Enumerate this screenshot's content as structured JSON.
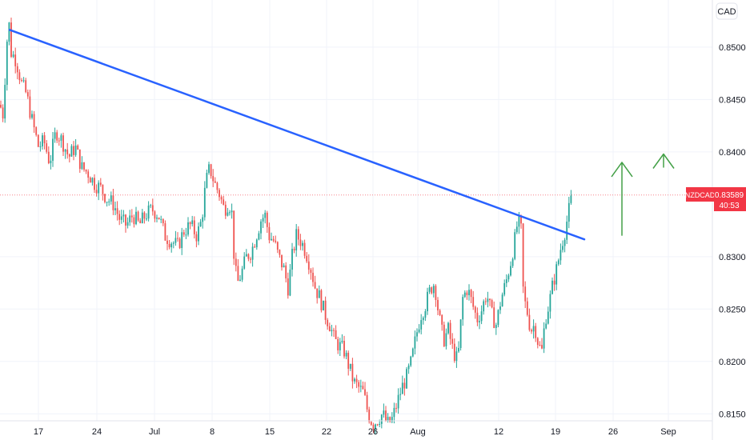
{
  "chart_data": {
    "type": "candlestick",
    "symbol": "NZDCAD",
    "currency_label": "CAD",
    "current_price": "0.83589",
    "countdown": "40:53",
    "y_ticks": [
      "0.85000",
      "0.84500",
      "0.84000",
      "0.83000",
      "0.82500",
      "0.82000",
      "0.81500"
    ],
    "y_tick_values": [
      0.85,
      0.845,
      0.84,
      0.83,
      0.825,
      0.82,
      0.815
    ],
    "x_ticks": [
      "17",
      "24",
      "Jul",
      "8",
      "15",
      "22",
      "26",
      "Aug",
      "12",
      "19",
      "26",
      "Sep"
    ],
    "ylim": [
      0.8125,
      0.8545
    ],
    "price_path": [
      [
        0,
        0.8445
      ],
      [
        4,
        0.8435
      ],
      [
        8,
        0.85
      ],
      [
        11,
        0.8525
      ],
      [
        14,
        0.8495
      ],
      [
        20,
        0.8488
      ],
      [
        27,
        0.8465
      ],
      [
        33,
        0.8455
      ],
      [
        40,
        0.843
      ],
      [
        48,
        0.8405
      ],
      [
        55,
        0.841
      ],
      [
        62,
        0.839
      ],
      [
        70,
        0.842
      ],
      [
        78,
        0.841
      ],
      [
        86,
        0.8395
      ],
      [
        94,
        0.8405
      ],
      [
        102,
        0.8385
      ],
      [
        110,
        0.838
      ],
      [
        118,
        0.837
      ],
      [
        126,
        0.8365
      ],
      [
        134,
        0.8355
      ],
      [
        142,
        0.835
      ],
      [
        150,
        0.8335
      ],
      [
        158,
        0.833
      ],
      [
        166,
        0.834
      ],
      [
        174,
        0.833
      ],
      [
        182,
        0.834
      ],
      [
        190,
        0.8345
      ],
      [
        198,
        0.834
      ],
      [
        206,
        0.832
      ],
      [
        214,
        0.8315
      ],
      [
        222,
        0.831
      ],
      [
        230,
        0.8325
      ],
      [
        238,
        0.833
      ],
      [
        246,
        0.832
      ],
      [
        252,
        0.8335
      ],
      [
        257,
        0.837
      ],
      [
        262,
        0.8385
      ],
      [
        268,
        0.837
      ],
      [
        274,
        0.836
      ],
      [
        280,
        0.8345
      ],
      [
        286,
        0.8352
      ],
      [
        290,
        0.834
      ],
      [
        293,
        0.829
      ],
      [
        297,
        0.8275
      ],
      [
        302,
        0.8285
      ],
      [
        308,
        0.83
      ],
      [
        314,
        0.8305
      ],
      [
        320,
        0.832
      ],
      [
        326,
        0.8335
      ],
      [
        331,
        0.834
      ],
      [
        336,
        0.832
      ],
      [
        342,
        0.8315
      ],
      [
        348,
        0.83
      ],
      [
        354,
        0.829
      ],
      [
        360,
        0.827
      ],
      [
        365,
        0.83
      ],
      [
        370,
        0.832
      ],
      [
        376,
        0.8315
      ],
      [
        382,
        0.8305
      ],
      [
        388,
        0.829
      ],
      [
        394,
        0.827
      ],
      [
        400,
        0.826
      ],
      [
        406,
        0.8245
      ],
      [
        412,
        0.8235
      ],
      [
        418,
        0.822
      ],
      [
        424,
        0.8215
      ],
      [
        430,
        0.821
      ],
      [
        436,
        0.8195
      ],
      [
        442,
        0.818
      ],
      [
        448,
        0.8175
      ],
      [
        454,
        0.817
      ],
      [
        460,
        0.815
      ],
      [
        466,
        0.814
      ],
      [
        472,
        0.8145
      ],
      [
        478,
        0.815
      ],
      [
        484,
        0.814
      ],
      [
        490,
        0.8145
      ],
      [
        496,
        0.816
      ],
      [
        502,
        0.8175
      ],
      [
        508,
        0.8185
      ],
      [
        514,
        0.82
      ],
      [
        520,
        0.8225
      ],
      [
        526,
        0.8245
      ],
      [
        532,
        0.8255
      ],
      [
        538,
        0.827
      ],
      [
        543,
        0.8275
      ],
      [
        548,
        0.8245
      ],
      [
        554,
        0.822
      ],
      [
        560,
        0.823
      ],
      [
        566,
        0.821
      ],
      [
        572,
        0.82
      ],
      [
        578,
        0.826
      ],
      [
        584,
        0.827
      ],
      [
        590,
        0.8255
      ],
      [
        596,
        0.824
      ],
      [
        602,
        0.825
      ],
      [
        608,
        0.8265
      ],
      [
        614,
        0.8245
      ],
      [
        620,
        0.8235
      ],
      [
        626,
        0.826
      ],
      [
        632,
        0.8275
      ],
      [
        638,
        0.8295
      ],
      [
        643,
        0.8315
      ],
      [
        647,
        0.8335
      ],
      [
        651,
        0.8325
      ],
      [
        654,
        0.826
      ],
      [
        658,
        0.825
      ],
      [
        663,
        0.823
      ],
      [
        668,
        0.8235
      ],
      [
        673,
        0.8215
      ],
      [
        677,
        0.821
      ],
      [
        681,
        0.824
      ],
      [
        686,
        0.8255
      ],
      [
        691,
        0.8275
      ],
      [
        696,
        0.829
      ],
      [
        701,
        0.831
      ],
      [
        706,
        0.8325
      ],
      [
        711,
        0.8345
      ],
      [
        715,
        0.8359
      ]
    ],
    "trendline": {
      "x1": 12,
      "y1": 0.85165,
      "x2": 730,
      "y2": 0.83165
    },
    "annotations": [
      {
        "type": "arrow-up",
        "x": 777,
        "y_top": 0.839,
        "y_bottom": 0.832
      },
      {
        "type": "arrow-up",
        "x": 829,
        "y_top": 0.8398,
        "y_bottom": 0.8385
      }
    ],
    "grid": true,
    "colors": {
      "up": "#26a69a",
      "down": "#ef5350",
      "wick": "#434651",
      "trendline": "#2962ff",
      "arrow": "#43a047",
      "price_tag": "#f23645"
    }
  }
}
